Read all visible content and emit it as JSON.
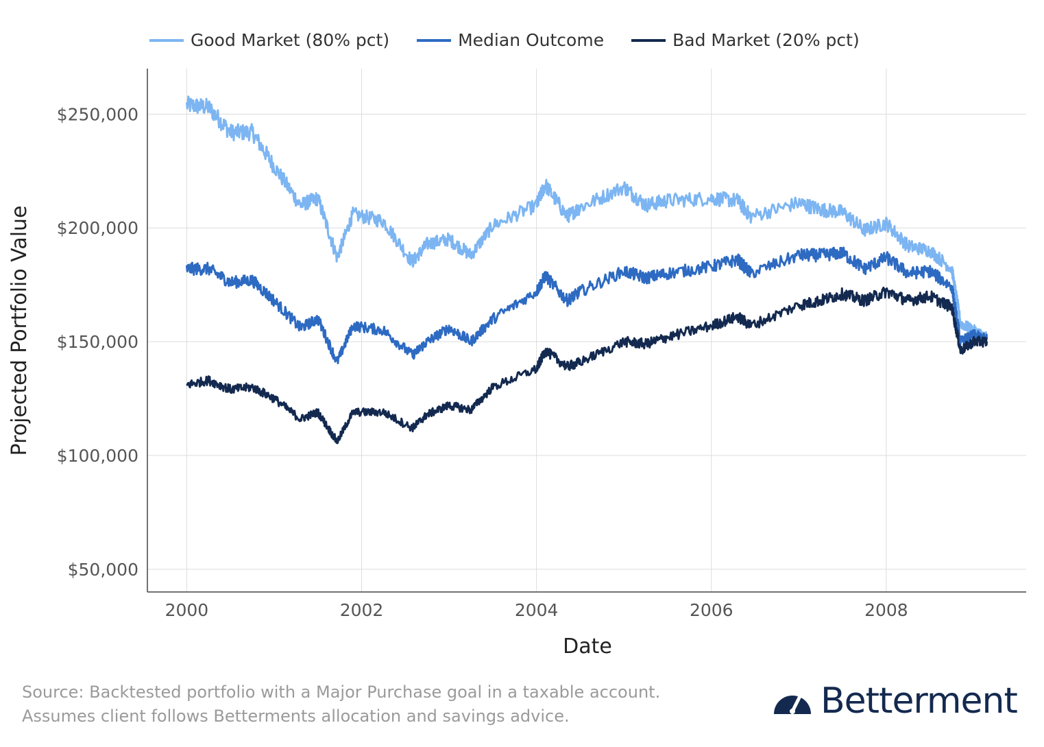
{
  "chart_data": {
    "type": "line",
    "xlabel": "Date",
    "ylabel": "Projected Portfolio Value",
    "xlim": [
      1999.55,
      2009.6
    ],
    "ylim": [
      40000,
      270000
    ],
    "x_ticks": [
      2000,
      2002,
      2004,
      2006,
      2008
    ],
    "x_tick_labels": [
      "2000",
      "2002",
      "2004",
      "2006",
      "2008"
    ],
    "y_ticks": [
      50000,
      100000,
      150000,
      200000,
      250000
    ],
    "y_tick_labels": [
      "$50,000",
      "$100,000",
      "$150,000",
      "$200,000",
      "$250,000"
    ],
    "grid": true,
    "legend_position": "top",
    "series": [
      {
        "name": "Good Market (80% pct)",
        "color": "#7cb5f2",
        "x": [
          2000.0,
          2000.25,
          2000.5,
          2000.75,
          2001.0,
          2001.3,
          2001.5,
          2001.72,
          2001.9,
          2002.25,
          2002.58,
          2002.75,
          2003.0,
          2003.25,
          2003.5,
          2004.0,
          2004.1,
          2004.35,
          2004.5,
          2005.0,
          2005.25,
          2005.5,
          2006.0,
          2006.3,
          2006.45,
          2007.0,
          2007.25,
          2007.5,
          2007.75,
          2008.0,
          2008.25,
          2008.5,
          2008.75,
          2008.85,
          2009.0,
          2009.15
        ],
        "values": [
          254000,
          253000,
          242000,
          242000,
          227000,
          210000,
          213000,
          187000,
          206000,
          203000,
          185000,
          193000,
          195000,
          188000,
          201000,
          210000,
          219000,
          205000,
          209000,
          218000,
          210000,
          212000,
          213000,
          212000,
          205000,
          211000,
          208000,
          207000,
          199000,
          202000,
          192000,
          190000,
          182000,
          158000,
          155000,
          152000
        ]
      },
      {
        "name": "Median Outcome",
        "color": "#2d6ac2",
        "x": [
          2000.0,
          2000.25,
          2000.5,
          2000.75,
          2001.0,
          2001.3,
          2001.5,
          2001.72,
          2001.9,
          2002.25,
          2002.58,
          2002.75,
          2003.0,
          2003.25,
          2003.5,
          2004.0,
          2004.1,
          2004.35,
          2004.5,
          2005.0,
          2005.25,
          2005.5,
          2006.0,
          2006.3,
          2006.45,
          2007.0,
          2007.25,
          2007.5,
          2007.75,
          2008.0,
          2008.25,
          2008.5,
          2008.75,
          2008.85,
          2009.0,
          2009.15
        ],
        "values": [
          182000,
          182000,
          176000,
          177000,
          168000,
          156000,
          160000,
          141000,
          157000,
          155000,
          144000,
          150000,
          156000,
          150000,
          160000,
          172000,
          179000,
          168000,
          172000,
          181000,
          178000,
          180000,
          183000,
          186000,
          180000,
          188000,
          188000,
          189000,
          182000,
          187000,
          180000,
          181000,
          174000,
          150000,
          153000,
          151000
        ]
      },
      {
        "name": "Bad Market (20% pct)",
        "color": "#13294f",
        "x": [
          2000.0,
          2000.25,
          2000.5,
          2000.75,
          2001.0,
          2001.3,
          2001.5,
          2001.72,
          2001.9,
          2002.25,
          2002.58,
          2002.75,
          2003.0,
          2003.25,
          2003.5,
          2004.0,
          2004.1,
          2004.35,
          2004.5,
          2005.0,
          2005.25,
          2005.5,
          2006.0,
          2006.3,
          2006.45,
          2007.0,
          2007.25,
          2007.5,
          2007.75,
          2008.0,
          2008.25,
          2008.5,
          2008.75,
          2008.85,
          2009.0,
          2009.15
        ],
        "values": [
          131000,
          133000,
          129000,
          130000,
          125000,
          116000,
          119000,
          106000,
          119000,
          119000,
          112000,
          118000,
          122000,
          120000,
          130000,
          138000,
          146000,
          139000,
          141000,
          150000,
          149000,
          152000,
          157000,
          161000,
          157000,
          166000,
          168000,
          171000,
          168000,
          172000,
          168000,
          170000,
          165000,
          146000,
          150000,
          150000
        ]
      }
    ]
  },
  "footer": {
    "source_line1": "Source: Backtested portfolio with a Major Purchase goal in a taxable account.",
    "source_line2": "Assumes client follows Betterments allocation and savings advice.",
    "brand_name": "Betterment",
    "brand_icon": "speedometer-icon",
    "brand_color": "#14294f"
  }
}
